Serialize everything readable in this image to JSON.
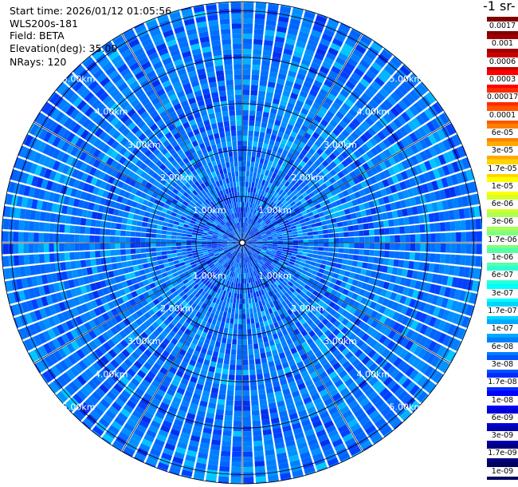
{
  "header": {
    "start_time": "Start time: 2026/01/12 01:05:56",
    "instrument": "WLS200s-181",
    "field": "Field: BETA",
    "elevation": "Elevation(deg): 35.00",
    "nrays": "NRays: 120"
  },
  "colorbar": {
    "units_label": "-1 sr-",
    "tick_labels": [
      "0.0017",
      "0.001",
      "0.0006",
      "0.0003",
      "0.00017",
      "0.0001",
      "6e-05",
      "3e-05",
      "1.7e-05",
      "1e-05",
      "6e-06",
      "3e-06",
      "1.7e-06",
      "1e-06",
      "6e-07",
      "3e-07",
      "1.7e-07",
      "1e-07",
      "6e-08",
      "3e-08",
      "1.7e-08",
      "1e-08",
      "6e-09",
      "3e-09",
      "1.7e-09",
      "1e-09"
    ],
    "colors": [
      "#7f0000",
      "#a00000",
      "#c80000",
      "#ff0000",
      "#ff2a00",
      "#ff5500",
      "#ff7f00",
      "#ffaa00",
      "#ffd400",
      "#ffff00",
      "#d4ff2a",
      "#aaff55",
      "#7fff7f",
      "#55ffaa",
      "#2affd4",
      "#00ffff",
      "#00d4ff",
      "#00aaff",
      "#007fff",
      "#0055ff",
      "#002aff",
      "#0000ff",
      "#0000d4",
      "#0000aa",
      "#00007f",
      "#00005f"
    ]
  },
  "chart_data": {
    "type": "heatmap",
    "projection": "polar PPI",
    "field": "BETA",
    "elevation_deg": 35.0,
    "n_rays": 120,
    "range_max_km": 5.2,
    "range_rings_km": [
      1,
      2,
      3,
      4,
      5
    ],
    "ring_labels": [
      "1.00km",
      "2.00km",
      "3.00km",
      "4.00km",
      "5.00km"
    ],
    "value_range": [
      1e-09,
      0.0017
    ],
    "scale": "log",
    "dominant_value_range": [
      1e-08,
      1e-07
    ],
    "grid": true
  }
}
